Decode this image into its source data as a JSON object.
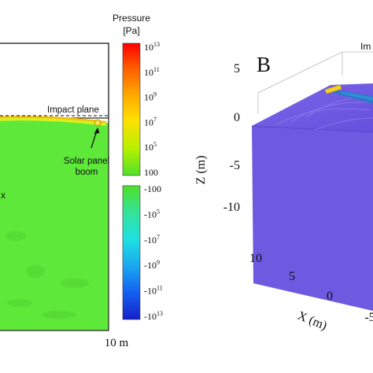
{
  "panel_a": {
    "impact_label": "Impact plane",
    "boom_label": "Solar panel\nboom",
    "edge_mark": "x",
    "scale_label": "10 m"
  },
  "colorbar": {
    "title_line1": "Pressure",
    "title_line2": "[Pa]",
    "positive_ticks": [
      {
        "base": "10",
        "exp": "13"
      },
      {
        "base": "10",
        "exp": "11"
      },
      {
        "base": "10",
        "exp": "9"
      },
      {
        "base": "10",
        "exp": "7"
      },
      {
        "base": "10",
        "exp": "5"
      },
      {
        "base": "100",
        "exp": ""
      }
    ],
    "negative_ticks": [
      {
        "base": "-100",
        "exp": ""
      },
      {
        "base": "-10",
        "exp": "5"
      },
      {
        "base": "-10",
        "exp": "7"
      },
      {
        "base": "-10",
        "exp": "9"
      },
      {
        "base": "-10",
        "exp": "11"
      },
      {
        "base": "-10",
        "exp": "13"
      }
    ]
  },
  "panel_b": {
    "panel_letter": "B",
    "impact_label_partial": "Im",
    "z_axis_label": "Z (m)",
    "z_ticks": [
      "5",
      "0",
      "-5",
      "-10"
    ],
    "x_axis_label": "X (m)",
    "x_ticks": [
      "10",
      "5",
      "0",
      "-5"
    ]
  },
  "colors": {
    "field_green": "#5ee83a",
    "block_purple": "#6e5ae0",
    "boom_yellow": "#f2d21c"
  }
}
